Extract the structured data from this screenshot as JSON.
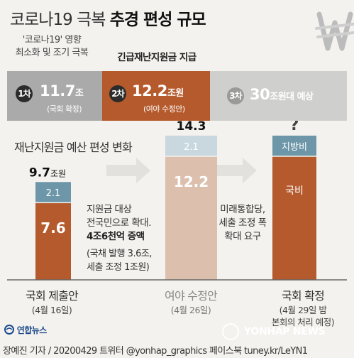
{
  "title": {
    "part1": "코로나19 극복 ",
    "part2": "추경 편성 규모"
  },
  "captions": {
    "c1_line1": "'코로나19' 영향",
    "c1_line2": "최소화 및 조기 극복",
    "c2": "긴급재난지원금 지급"
  },
  "banner": [
    {
      "badge": "1차",
      "amount": "11.7",
      "unit": "조",
      "note": "(국회 확정)"
    },
    {
      "badge": "2차",
      "amount": "12.2",
      "unit": "조원",
      "note": "(여야 수정안)"
    },
    {
      "badge": "3차",
      "amount": "30",
      "unit": "조원대 예상",
      "note": ""
    }
  ],
  "section_title": "재난지원금 예산 편성 변화",
  "chart_data": {
    "type": "bar",
    "stacked": true,
    "categories": [
      "국회 제출안",
      "여야 수정안",
      "국회 확정"
    ],
    "category_dates": [
      "(4월 16일)",
      "(4월 26일)"
    ],
    "category_date3_lines": [
      "(4월 29일 밤",
      "본회의 처리 예정)"
    ],
    "series": [
      {
        "name": "국비",
        "values": [
          7.6,
          12.2,
          null
        ]
      },
      {
        "name": "지방비",
        "values": [
          2.1,
          2.1,
          null
        ]
      }
    ],
    "totals": [
      "9.7",
      "14.3",
      "?"
    ],
    "total_units": [
      "조원",
      "",
      ""
    ],
    "colors": {
      "national": "#b55a2d",
      "local": "#6d97a9",
      "national_faded": "#dcc0ad",
      "local_faded": "#c9d8df"
    },
    "segment_labels": {
      "bar1": [
        "7.6",
        "2.1"
      ],
      "bar2": [
        "12.2",
        "2.1"
      ],
      "bar3": [
        "국비",
        "지방비"
      ]
    },
    "ylim": [
      0,
      15
    ]
  },
  "annotations": {
    "a1_line1": "지원금 대상",
    "a1_line2": "전국민으로 확대.",
    "a1_bold": "4조6천억 증액",
    "a1_sub1": "(국채 발행 3.6조,",
    "a1_sub2": "세출 조정 1조원)",
    "a2_line1": "미래통합당,",
    "a2_line2": "세출 조정 폭",
    "a2_line3": "확대 요구"
  },
  "footer": {
    "yh_logo": "연합뉴스",
    "yn_logo": "YONHAP NEWS",
    "credit": "장예진 기자 / 20200429 트위터 @yonhap_graphics  페이스북 tuney.kr/LeYN1"
  }
}
